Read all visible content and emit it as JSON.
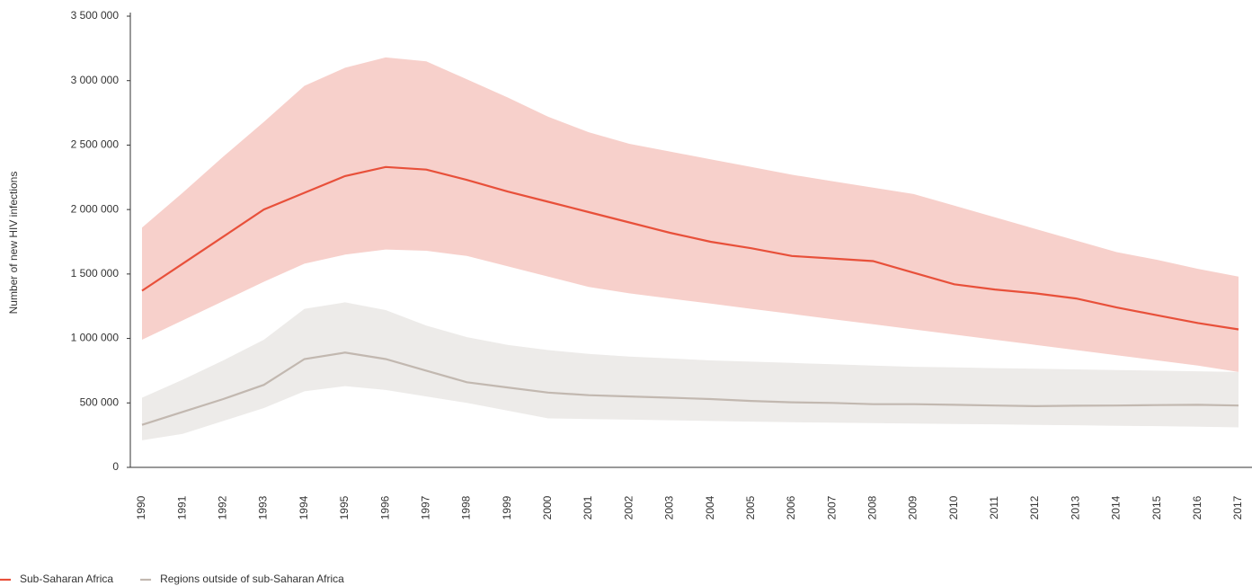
{
  "chart_data": {
    "type": "line",
    "y_label": "Number of new HIV infections",
    "categories": [
      "1990",
      "1991",
      "1992",
      "1993",
      "1994",
      "1995",
      "1996",
      "1997",
      "1998",
      "1999",
      "2000",
      "2001",
      "2002",
      "2003",
      "2004",
      "2005",
      "2006",
      "2007",
      "2008",
      "2009",
      "2010",
      "2011",
      "2012",
      "2013",
      "2014",
      "2015",
      "2016",
      "2017"
    ],
    "series": [
      {
        "name": "Sub-Saharan Africa",
        "color": "#e8503a",
        "band_color": "#f7d0cb",
        "values": [
          1370000,
          1580000,
          1790000,
          2000000,
          2130000,
          2260000,
          2330000,
          2310000,
          2230000,
          2140000,
          2060000,
          1980000,
          1900000,
          1820000,
          1750000,
          1700000,
          1640000,
          1620000,
          1600000,
          1510000,
          1420000,
          1380000,
          1350000,
          1310000,
          1240000,
          1180000,
          1120000,
          1070000
        ],
        "upper": [
          1860000,
          2130000,
          2410000,
          2680000,
          2960000,
          3100000,
          3180000,
          3150000,
          3010000,
          2870000,
          2720000,
          2600000,
          2510000,
          2450000,
          2390000,
          2330000,
          2270000,
          2220000,
          2170000,
          2120000,
          2030000,
          1940000,
          1850000,
          1760000,
          1670000,
          1610000,
          1540000,
          1480000
        ],
        "lower": [
          990000,
          1140000,
          1290000,
          1440000,
          1580000,
          1650000,
          1690000,
          1680000,
          1640000,
          1560000,
          1480000,
          1400000,
          1350000,
          1310000,
          1270000,
          1230000,
          1190000,
          1150000,
          1110000,
          1070000,
          1030000,
          990000,
          950000,
          910000,
          870000,
          830000,
          790000,
          740000
        ]
      },
      {
        "name": "Regions outside of sub-Saharan Africa",
        "color": "#c2b8b0",
        "band_color": "#edebe9",
        "values": [
          330000,
          430000,
          530000,
          640000,
          840000,
          890000,
          840000,
          750000,
          660000,
          620000,
          580000,
          560000,
          550000,
          540000,
          530000,
          515000,
          505000,
          500000,
          490000,
          490000,
          485000,
          480000,
          475000,
          478000,
          480000,
          483000,
          485000,
          480000
        ],
        "upper": [
          540000,
          680000,
          830000,
          990000,
          1230000,
          1280000,
          1220000,
          1100000,
          1010000,
          950000,
          910000,
          880000,
          860000,
          845000,
          830000,
          820000,
          810000,
          800000,
          790000,
          780000,
          775000,
          770000,
          765000,
          760000,
          755000,
          750000,
          745000,
          740000
        ],
        "lower": [
          210000,
          260000,
          360000,
          460000,
          590000,
          630000,
          600000,
          550000,
          500000,
          440000,
          380000,
          375000,
          370000,
          365000,
          360000,
          355000,
          350000,
          347000,
          344000,
          340000,
          337000,
          334000,
          330000,
          327000,
          323000,
          320000,
          316000,
          310000
        ]
      }
    ],
    "ylim": [
      0,
      3500000
    ],
    "yticks": [
      0,
      {
        "value": 500000,
        "label": "500 000"
      },
      {
        "value": 1000000,
        "label": "1 000 000"
      },
      {
        "value": 1500000,
        "label": "1 500 000"
      },
      {
        "value": 2000000,
        "label": "2 000 000"
      },
      {
        "value": 2500000,
        "label": "2 500 000"
      },
      {
        "value": 3000000,
        "label": "3 000 000"
      },
      {
        "value": 3500000,
        "label": "3 500 000"
      }
    ],
    "grid": false,
    "legend": "bottom-left"
  }
}
